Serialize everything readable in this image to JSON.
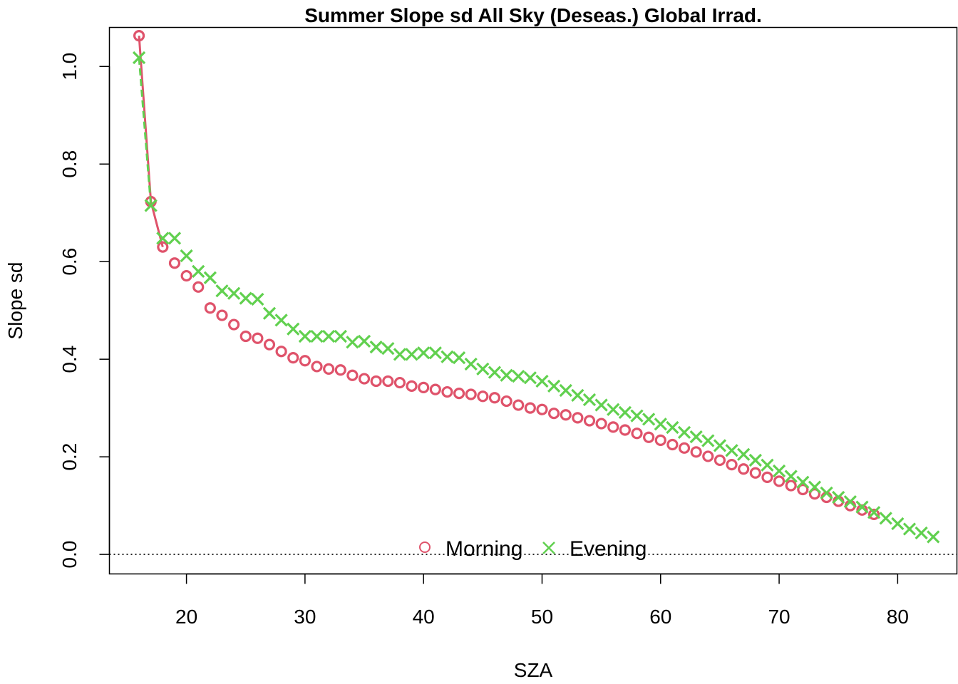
{
  "chart_data": {
    "type": "scatter",
    "title": "Summer Slope sd All Sky (Deseas.) Global Irrad.",
    "xlabel": "SZA",
    "ylabel": "Slope sd",
    "xlim": [
      13.5,
      85
    ],
    "ylim": [
      -0.04,
      1.08
    ],
    "xticks": [
      20,
      30,
      40,
      50,
      60,
      70,
      80
    ],
    "yticks": [
      0.0,
      0.2,
      0.4,
      0.6,
      0.8,
      1.0
    ],
    "xtick_labels": [
      "20",
      "30",
      "40",
      "50",
      "60",
      "70",
      "80"
    ],
    "ytick_labels": [
      "0.0",
      "0.2",
      "0.4",
      "0.6",
      "0.8",
      "1.0"
    ],
    "grid": false,
    "reference_line": {
      "y": 0,
      "style": "dotted",
      "color": "#000000"
    },
    "legend": {
      "placement": "bottom-center",
      "horizontal": true
    },
    "series": [
      {
        "name": "Morning",
        "marker": "circle",
        "color": "#DF536B",
        "line_segment_points": 3,
        "x": [
          16,
          17,
          18,
          19,
          20,
          21,
          22,
          23,
          24,
          25,
          26,
          27,
          28,
          29,
          30,
          31,
          32,
          33,
          34,
          35,
          36,
          37,
          38,
          39,
          40,
          41,
          42,
          43,
          44,
          45,
          46,
          47,
          48,
          49,
          50,
          51,
          52,
          53,
          54,
          55,
          56,
          57,
          58,
          59,
          60,
          61,
          62,
          63,
          64,
          65,
          66,
          67,
          68,
          69,
          70,
          71,
          72,
          73,
          74,
          75,
          76,
          77,
          78
        ],
        "y": [
          1.063,
          0.723,
          0.63,
          0.597,
          0.571,
          0.548,
          0.505,
          0.49,
          0.471,
          0.447,
          0.443,
          0.43,
          0.416,
          0.403,
          0.397,
          0.385,
          0.38,
          0.378,
          0.367,
          0.36,
          0.355,
          0.355,
          0.352,
          0.345,
          0.342,
          0.338,
          0.333,
          0.33,
          0.328,
          0.324,
          0.321,
          0.314,
          0.306,
          0.3,
          0.297,
          0.289,
          0.286,
          0.28,
          0.274,
          0.268,
          0.261,
          0.255,
          0.248,
          0.24,
          0.234,
          0.225,
          0.218,
          0.21,
          0.201,
          0.193,
          0.184,
          0.175,
          0.167,
          0.158,
          0.15,
          0.141,
          0.133,
          0.124,
          0.117,
          0.109,
          0.1,
          0.091,
          0.082
        ]
      },
      {
        "name": "Evening",
        "marker": "cross",
        "color": "#61D04F",
        "line_segment_points": 2,
        "x": [
          16,
          17,
          18,
          19,
          20,
          21,
          22,
          23,
          24,
          25,
          26,
          27,
          28,
          29,
          30,
          31,
          32,
          33,
          34,
          35,
          36,
          37,
          38,
          39,
          40,
          41,
          42,
          43,
          44,
          45,
          46,
          47,
          48,
          49,
          50,
          51,
          52,
          53,
          54,
          55,
          56,
          57,
          58,
          59,
          60,
          61,
          62,
          63,
          64,
          65,
          66,
          67,
          68,
          69,
          70,
          71,
          72,
          73,
          74,
          75,
          76,
          77,
          78,
          79,
          80,
          81,
          82,
          83
        ],
        "y": [
          1.018,
          0.715,
          0.648,
          0.648,
          0.612,
          0.58,
          0.567,
          0.54,
          0.535,
          0.525,
          0.523,
          0.494,
          0.48,
          0.462,
          0.447,
          0.447,
          0.447,
          0.447,
          0.435,
          0.437,
          0.425,
          0.422,
          0.41,
          0.41,
          0.413,
          0.413,
          0.405,
          0.403,
          0.39,
          0.38,
          0.373,
          0.367,
          0.365,
          0.362,
          0.355,
          0.345,
          0.336,
          0.326,
          0.317,
          0.306,
          0.297,
          0.291,
          0.284,
          0.277,
          0.267,
          0.26,
          0.25,
          0.241,
          0.233,
          0.223,
          0.213,
          0.205,
          0.193,
          0.183,
          0.171,
          0.16,
          0.148,
          0.138,
          0.126,
          0.117,
          0.108,
          0.097,
          0.086,
          0.074,
          0.063,
          0.052,
          0.044,
          0.036
        ]
      }
    ]
  }
}
